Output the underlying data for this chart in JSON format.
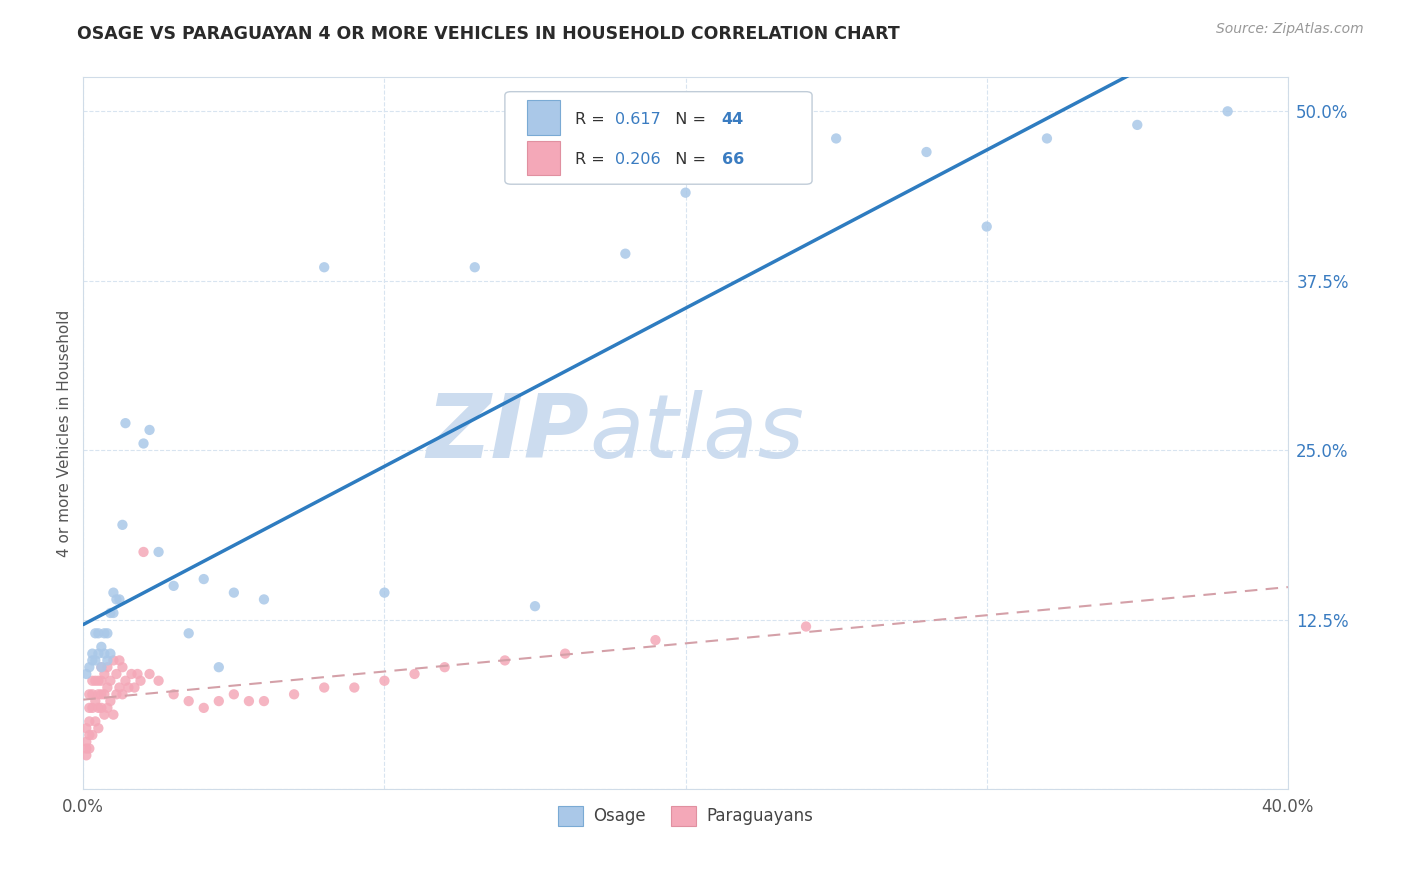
{
  "title": "OSAGE VS PARAGUAYAN 4 OR MORE VEHICLES IN HOUSEHOLD CORRELATION CHART",
  "source": "Source: ZipAtlas.com",
  "ylabel": "4 or more Vehicles in Household",
  "xmin": 0.0,
  "xmax": 0.4,
  "ymin": 0.0,
  "ymax": 0.525,
  "xtick_positions": [
    0.0,
    0.1,
    0.2,
    0.3,
    0.4
  ],
  "xtick_labels": [
    "0.0%",
    "",
    "",
    "",
    "40.0%"
  ],
  "ytick_positions": [
    0.0,
    0.125,
    0.25,
    0.375,
    0.5
  ],
  "ytick_labels": [
    "",
    "12.5%",
    "25.0%",
    "37.5%",
    "50.0%"
  ],
  "osage_R": "0.617",
  "osage_N": "44",
  "paraguayan_R": "0.206",
  "paraguayan_N": "66",
  "osage_dot_color": "#aac8e8",
  "paraguayan_dot_color": "#f4a8b8",
  "osage_line_color": "#2e7cc0",
  "paraguayan_line_color": "#e8a0a8",
  "paraguayan_line_dash_color": "#d4a0a8",
  "watermark_zip": "ZIP",
  "watermark_atlas": "atlas",
  "watermark_color": "#ccdcef",
  "legend_label_osage": "Osage",
  "legend_label_paraguayan": "Paraguayans",
  "value_color": "#3a7cc1",
  "title_color": "#2a2a2a",
  "source_color": "#999999",
  "grid_color": "#d8e4f0",
  "spine_color": "#d0dce8",
  "osage_x": [
    0.001,
    0.002,
    0.003,
    0.003,
    0.004,
    0.004,
    0.005,
    0.005,
    0.006,
    0.006,
    0.007,
    0.007,
    0.008,
    0.008,
    0.009,
    0.009,
    0.01,
    0.01,
    0.011,
    0.012,
    0.013,
    0.014,
    0.02,
    0.022,
    0.025,
    0.03,
    0.035,
    0.04,
    0.045,
    0.05,
    0.06,
    0.08,
    0.1,
    0.13,
    0.15,
    0.18,
    0.2,
    0.22,
    0.25,
    0.28,
    0.3,
    0.32,
    0.35,
    0.38
  ],
  "osage_y": [
    0.085,
    0.09,
    0.095,
    0.1,
    0.095,
    0.115,
    0.1,
    0.115,
    0.09,
    0.105,
    0.1,
    0.115,
    0.095,
    0.115,
    0.1,
    0.13,
    0.13,
    0.145,
    0.14,
    0.14,
    0.195,
    0.27,
    0.255,
    0.265,
    0.175,
    0.15,
    0.115,
    0.155,
    0.09,
    0.145,
    0.14,
    0.385,
    0.145,
    0.385,
    0.135,
    0.395,
    0.44,
    0.465,
    0.48,
    0.47,
    0.415,
    0.48,
    0.49,
    0.5
  ],
  "paraguayan_x": [
    0.001,
    0.001,
    0.001,
    0.001,
    0.002,
    0.002,
    0.002,
    0.002,
    0.002,
    0.003,
    0.003,
    0.003,
    0.003,
    0.004,
    0.004,
    0.004,
    0.005,
    0.005,
    0.005,
    0.005,
    0.006,
    0.006,
    0.006,
    0.006,
    0.007,
    0.007,
    0.007,
    0.008,
    0.008,
    0.008,
    0.009,
    0.009,
    0.01,
    0.01,
    0.011,
    0.011,
    0.012,
    0.012,
    0.013,
    0.013,
    0.014,
    0.015,
    0.016,
    0.017,
    0.018,
    0.019,
    0.02,
    0.022,
    0.025,
    0.03,
    0.035,
    0.04,
    0.045,
    0.05,
    0.055,
    0.06,
    0.07,
    0.08,
    0.09,
    0.1,
    0.11,
    0.12,
    0.14,
    0.16,
    0.19,
    0.24
  ],
  "paraguayan_y": [
    0.025,
    0.03,
    0.035,
    0.045,
    0.03,
    0.04,
    0.05,
    0.06,
    0.07,
    0.04,
    0.06,
    0.07,
    0.08,
    0.05,
    0.065,
    0.08,
    0.045,
    0.06,
    0.07,
    0.08,
    0.06,
    0.07,
    0.08,
    0.09,
    0.055,
    0.07,
    0.085,
    0.06,
    0.075,
    0.09,
    0.065,
    0.08,
    0.055,
    0.095,
    0.07,
    0.085,
    0.075,
    0.095,
    0.07,
    0.09,
    0.08,
    0.075,
    0.085,
    0.075,
    0.085,
    0.08,
    0.175,
    0.085,
    0.08,
    0.07,
    0.065,
    0.06,
    0.065,
    0.07,
    0.065,
    0.065,
    0.07,
    0.075,
    0.075,
    0.08,
    0.085,
    0.09,
    0.095,
    0.1,
    0.11,
    0.12
  ]
}
